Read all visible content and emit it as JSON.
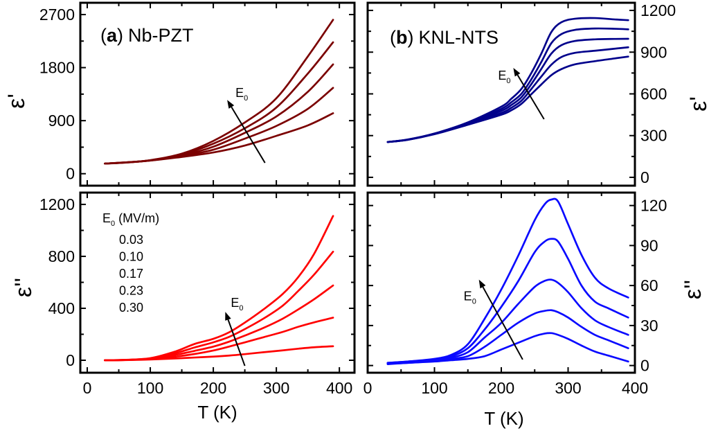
{
  "legend": {
    "title": {
      "symbol": "E",
      "subscript": "0",
      "unit": " (MV/m)"
    },
    "entries": [
      "0.03",
      "0.10",
      "0.17",
      "0.23",
      "0.30"
    ],
    "placement": "top-left of lower-left panel"
  },
  "chart_data": [
    {
      "id": "a-top",
      "type": "line",
      "panel_label": {
        "open": "(",
        "letter": "a",
        "close": ")",
        "name": "Nb-PZT"
      },
      "material": "Nb-PZT",
      "quantity": "real permittivity",
      "xlabel": "",
      "ylabel": "ε'",
      "yaxis_side": "left",
      "xlim": [
        -11,
        424
      ],
      "ylim": [
        -203,
        2900
      ],
      "xticks": {
        "major": [
          0,
          100,
          200,
          300,
          400
        ],
        "minor": [
          50,
          150,
          250,
          350
        ],
        "labels": []
      },
      "yticks": {
        "major": [
          0,
          900,
          1800,
          2700
        ],
        "minor": [
          450,
          1350,
          2250
        ],
        "labels": [
          "0",
          "900",
          "1800",
          "2700"
        ]
      },
      "color": "#7B0000",
      "x": [
        28,
        60,
        100,
        150,
        200,
        250,
        300,
        350,
        390
      ],
      "series": [
        {
          "name": "0.03",
          "values": [
            172,
            188,
            222,
            285,
            360,
            478,
            642,
            820,
            1026
          ]
        },
        {
          "name": "0.10",
          "values": [
            172,
            189,
            224,
            298,
            407,
            595,
            810,
            1100,
            1456
          ]
        },
        {
          "name": "0.17",
          "values": [
            172,
            190,
            226,
            310,
            458,
            693,
            971,
            1390,
            1855
          ]
        },
        {
          "name": "0.23",
          "values": [
            172,
            191,
            228,
            325,
            509,
            771,
            1123,
            1700,
            2230
          ]
        },
        {
          "name": "0.30",
          "values": [
            172,
            192,
            230,
            340,
            556,
            869,
            1280,
            1990,
            2611
          ]
        }
      ],
      "annotation": {
        "text": "E",
        "subscript": "0",
        "meaning": "increasing E0",
        "arrow_from": [
          282,
          184
        ],
        "arrow_to": [
          222,
          1252
        ]
      }
    },
    {
      "id": "a-bottom",
      "type": "line",
      "panel_label": null,
      "material": "Nb-PZT",
      "quantity": "imaginary permittivity",
      "xlabel": "T (K)",
      "ylabel": "ε''",
      "yaxis_side": "left",
      "xlim": [
        -11,
        424
      ],
      "ylim": [
        -96,
        1291
      ],
      "xticks": {
        "major": [
          0,
          100,
          200,
          300,
          400
        ],
        "minor": [
          50,
          150,
          250,
          350
        ],
        "labels": [
          "0",
          "100",
          "200",
          "300",
          "400"
        ]
      },
      "yticks": {
        "major": [
          0,
          400,
          800,
          1200
        ],
        "minor": [
          200,
          600,
          1000
        ],
        "labels": [
          "0",
          "400",
          "800",
          "1200"
        ]
      },
      "color": "#FF0000",
      "x": [
        28,
        60,
        100,
        140,
        170,
        200,
        225,
        250,
        280,
        310,
        335,
        360,
        390
      ],
      "series": [
        {
          "name": "0.03",
          "values": [
            0,
            1,
            6,
            14,
            21,
            28,
            36,
            47,
            62,
            76,
            89,
            100,
            108
          ]
        },
        {
          "name": "0.10",
          "values": [
            0,
            2,
            10,
            28,
            48,
            75,
            105,
            138,
            178,
            218,
            258,
            292,
            328
          ]
        },
        {
          "name": "0.17",
          "values": [
            0,
            2,
            12,
            42,
            72,
            105,
            143,
            190,
            250,
            320,
            392,
            470,
            576
          ]
        },
        {
          "name": "0.23",
          "values": [
            0,
            3,
            14,
            55,
            98,
            138,
            180,
            240,
            322,
            420,
            535,
            660,
            836
          ]
        },
        {
          "name": "0.30",
          "values": [
            0,
            3,
            16,
            68,
            125,
            165,
            215,
            290,
            393,
            510,
            642,
            820,
            1111
          ]
        }
      ],
      "annotation": {
        "text": "E",
        "subscript": "0",
        "meaning": "increasing E0",
        "arrow_from": [
          250,
          -43
        ],
        "arrow_to": [
          219,
          373
        ]
      }
    },
    {
      "id": "b-top",
      "type": "line",
      "panel_label": {
        "open": "(",
        "letter": "b",
        "close": ")",
        "name": "KNL-NTS"
      },
      "material": "KNL-NTS",
      "quantity": "real permittivity",
      "xlabel": "",
      "ylabel": "ε'",
      "yaxis_side": "right",
      "xlim": [
        0,
        400
      ],
      "ylim": [
        -60,
        1255
      ],
      "xticks": {
        "major": [
          0,
          100,
          200,
          300,
          400
        ],
        "minor": [
          50,
          150,
          250,
          350
        ],
        "labels": []
      },
      "yticks": {
        "major": [
          0,
          300,
          600,
          900,
          1200
        ],
        "minor": [
          150,
          450,
          750,
          1050
        ],
        "labels": [
          "0",
          "300",
          "600",
          "900",
          "1200"
        ]
      },
      "color": "#00008B",
      "x": [
        30,
        60,
        100,
        150,
        200,
        215,
        230,
        245,
        260,
        275,
        290,
        310,
        340,
        370,
        390
      ],
      "series": [
        {
          "name": "0.03",
          "values": [
            254,
            270,
            310,
            378,
            450,
            482,
            528,
            598,
            668,
            735,
            778,
            812,
            835,
            855,
            868
          ]
        },
        {
          "name": "0.10",
          "values": [
            254,
            270,
            312,
            383,
            463,
            500,
            550,
            635,
            725,
            810,
            865,
            895,
            910,
            925,
            935
          ]
        },
        {
          "name": "0.17",
          "values": [
            254,
            271,
            313,
            387,
            478,
            520,
            575,
            670,
            780,
            890,
            950,
            980,
            992,
            995,
            996
          ]
        },
        {
          "name": "0.23",
          "values": [
            254,
            271,
            314,
            391,
            492,
            540,
            600,
            705,
            830,
            965,
            1030,
            1060,
            1070,
            1068,
            1064
          ]
        },
        {
          "name": "0.30",
          "values": [
            254,
            272,
            315,
            395,
            508,
            565,
            635,
            750,
            890,
            1045,
            1115,
            1140,
            1145,
            1135,
            1130
          ]
        }
      ],
      "annotation": {
        "text": "E",
        "subscript": "0",
        "meaning": "increasing E0",
        "arrow_from": [
          264,
          418
        ],
        "arrow_to": [
          218,
          787
        ]
      }
    },
    {
      "id": "b-bottom",
      "type": "line",
      "panel_label": null,
      "material": "KNL-NTS",
      "quantity": "imaginary permittivity",
      "xlabel": "T (K)",
      "ylabel": "ε''",
      "yaxis_side": "right",
      "xlim": [
        0,
        400
      ],
      "ylim": [
        -5.4,
        129.7
      ],
      "xticks": {
        "major": [
          0,
          100,
          200,
          300,
          400
        ],
        "minor": [
          50,
          150,
          250,
          350
        ],
        "labels": [
          "0",
          "100",
          "200",
          "300",
          "400"
        ]
      },
      "yticks": {
        "major": [
          0,
          30,
          60,
          90,
          120
        ],
        "minor": [
          15,
          45,
          75,
          105
        ],
        "labels": [
          "0",
          "30",
          "60",
          "90",
          "120"
        ]
      },
      "color": "#0A0AFF",
      "x": [
        30,
        60,
        100,
        125,
        150,
        175,
        200,
        225,
        250,
        265,
        275,
        285,
        300,
        320,
        340,
        360,
        390
      ],
      "series": [
        {
          "name": "0.03",
          "values": [
            1,
            2,
            3,
            4,
            5,
            7,
            12,
            17,
            22,
            24,
            24.3,
            23,
            20,
            15,
            10.5,
            7.5,
            3
          ]
        },
        {
          "name": "0.10",
          "values": [
            1.5,
            2,
            3.5,
            5,
            7,
            14,
            23,
            32,
            39,
            41,
            41.5,
            40,
            36,
            29,
            23,
            19,
            13
          ]
        },
        {
          "name": "0.17",
          "values": [
            1.5,
            2.5,
            4,
            6,
            10,
            21,
            32,
            46,
            59,
            63.5,
            64.4,
            62,
            55,
            43,
            34,
            29,
            23
          ]
        },
        {
          "name": "0.23",
          "values": [
            2,
            3,
            4.5,
            7,
            13,
            27,
            44,
            63,
            85,
            93,
            95,
            93,
            80,
            60,
            48,
            43,
            36
          ]
        },
        {
          "name": "0.30",
          "values": [
            2,
            3,
            5,
            8,
            16,
            35,
            57,
            82,
            109,
            121,
            124.5,
            123,
            106,
            83,
            66,
            58,
            51
          ]
        }
      ],
      "annotation": {
        "text": "E",
        "subscript": "0",
        "meaning": "increasing E0",
        "arrow_from": [
          232,
          4.5
        ],
        "arrow_to": [
          166.5,
          64.4
        ]
      }
    }
  ]
}
